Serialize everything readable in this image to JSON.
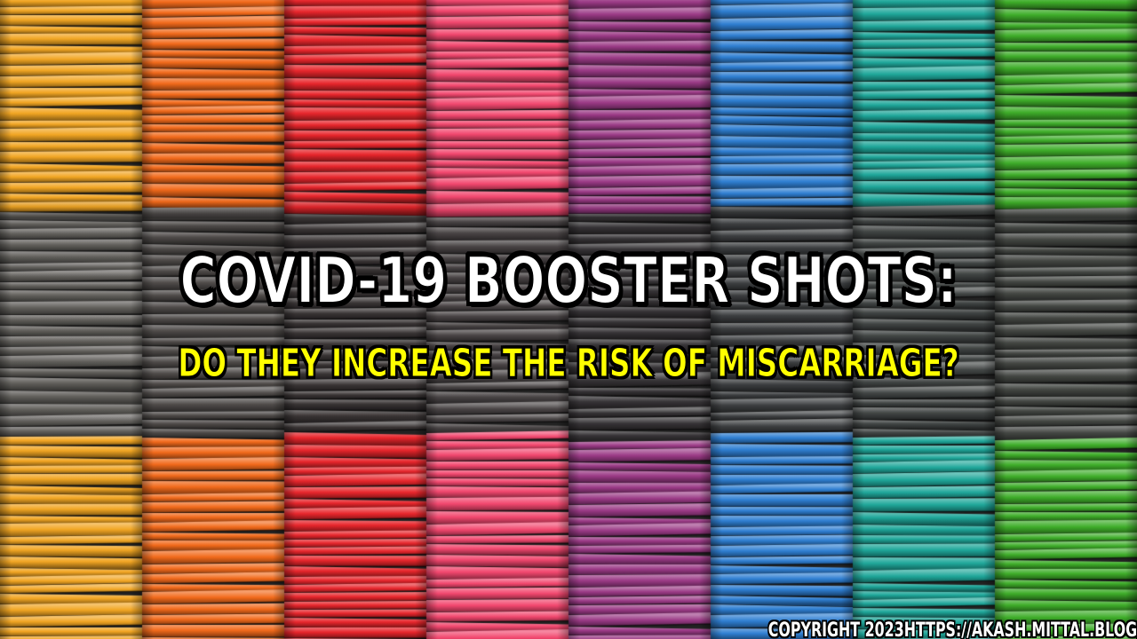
{
  "headline": {
    "title": "COVID-19 BOOSTER SHOTS:",
    "subtitle": "DO THEY INCREASE THE RISK OF MISCARRIAGE?"
  },
  "footer": {
    "copyright": "COPYRIGHT 2023HTTPS://AKASH.MITTAL.BLOG/"
  },
  "background": {
    "description_colors": {
      "column_colors": [
        "#f2a623",
        "#f26a1b",
        "#e8262c",
        "#f2476e",
        "#9b3a86",
        "#2f7fd2",
        "#1fa79a",
        "#3fae2a"
      ],
      "middle_band_tint": "#3a3a3a",
      "stripe_shadow": "#000000"
    }
  }
}
